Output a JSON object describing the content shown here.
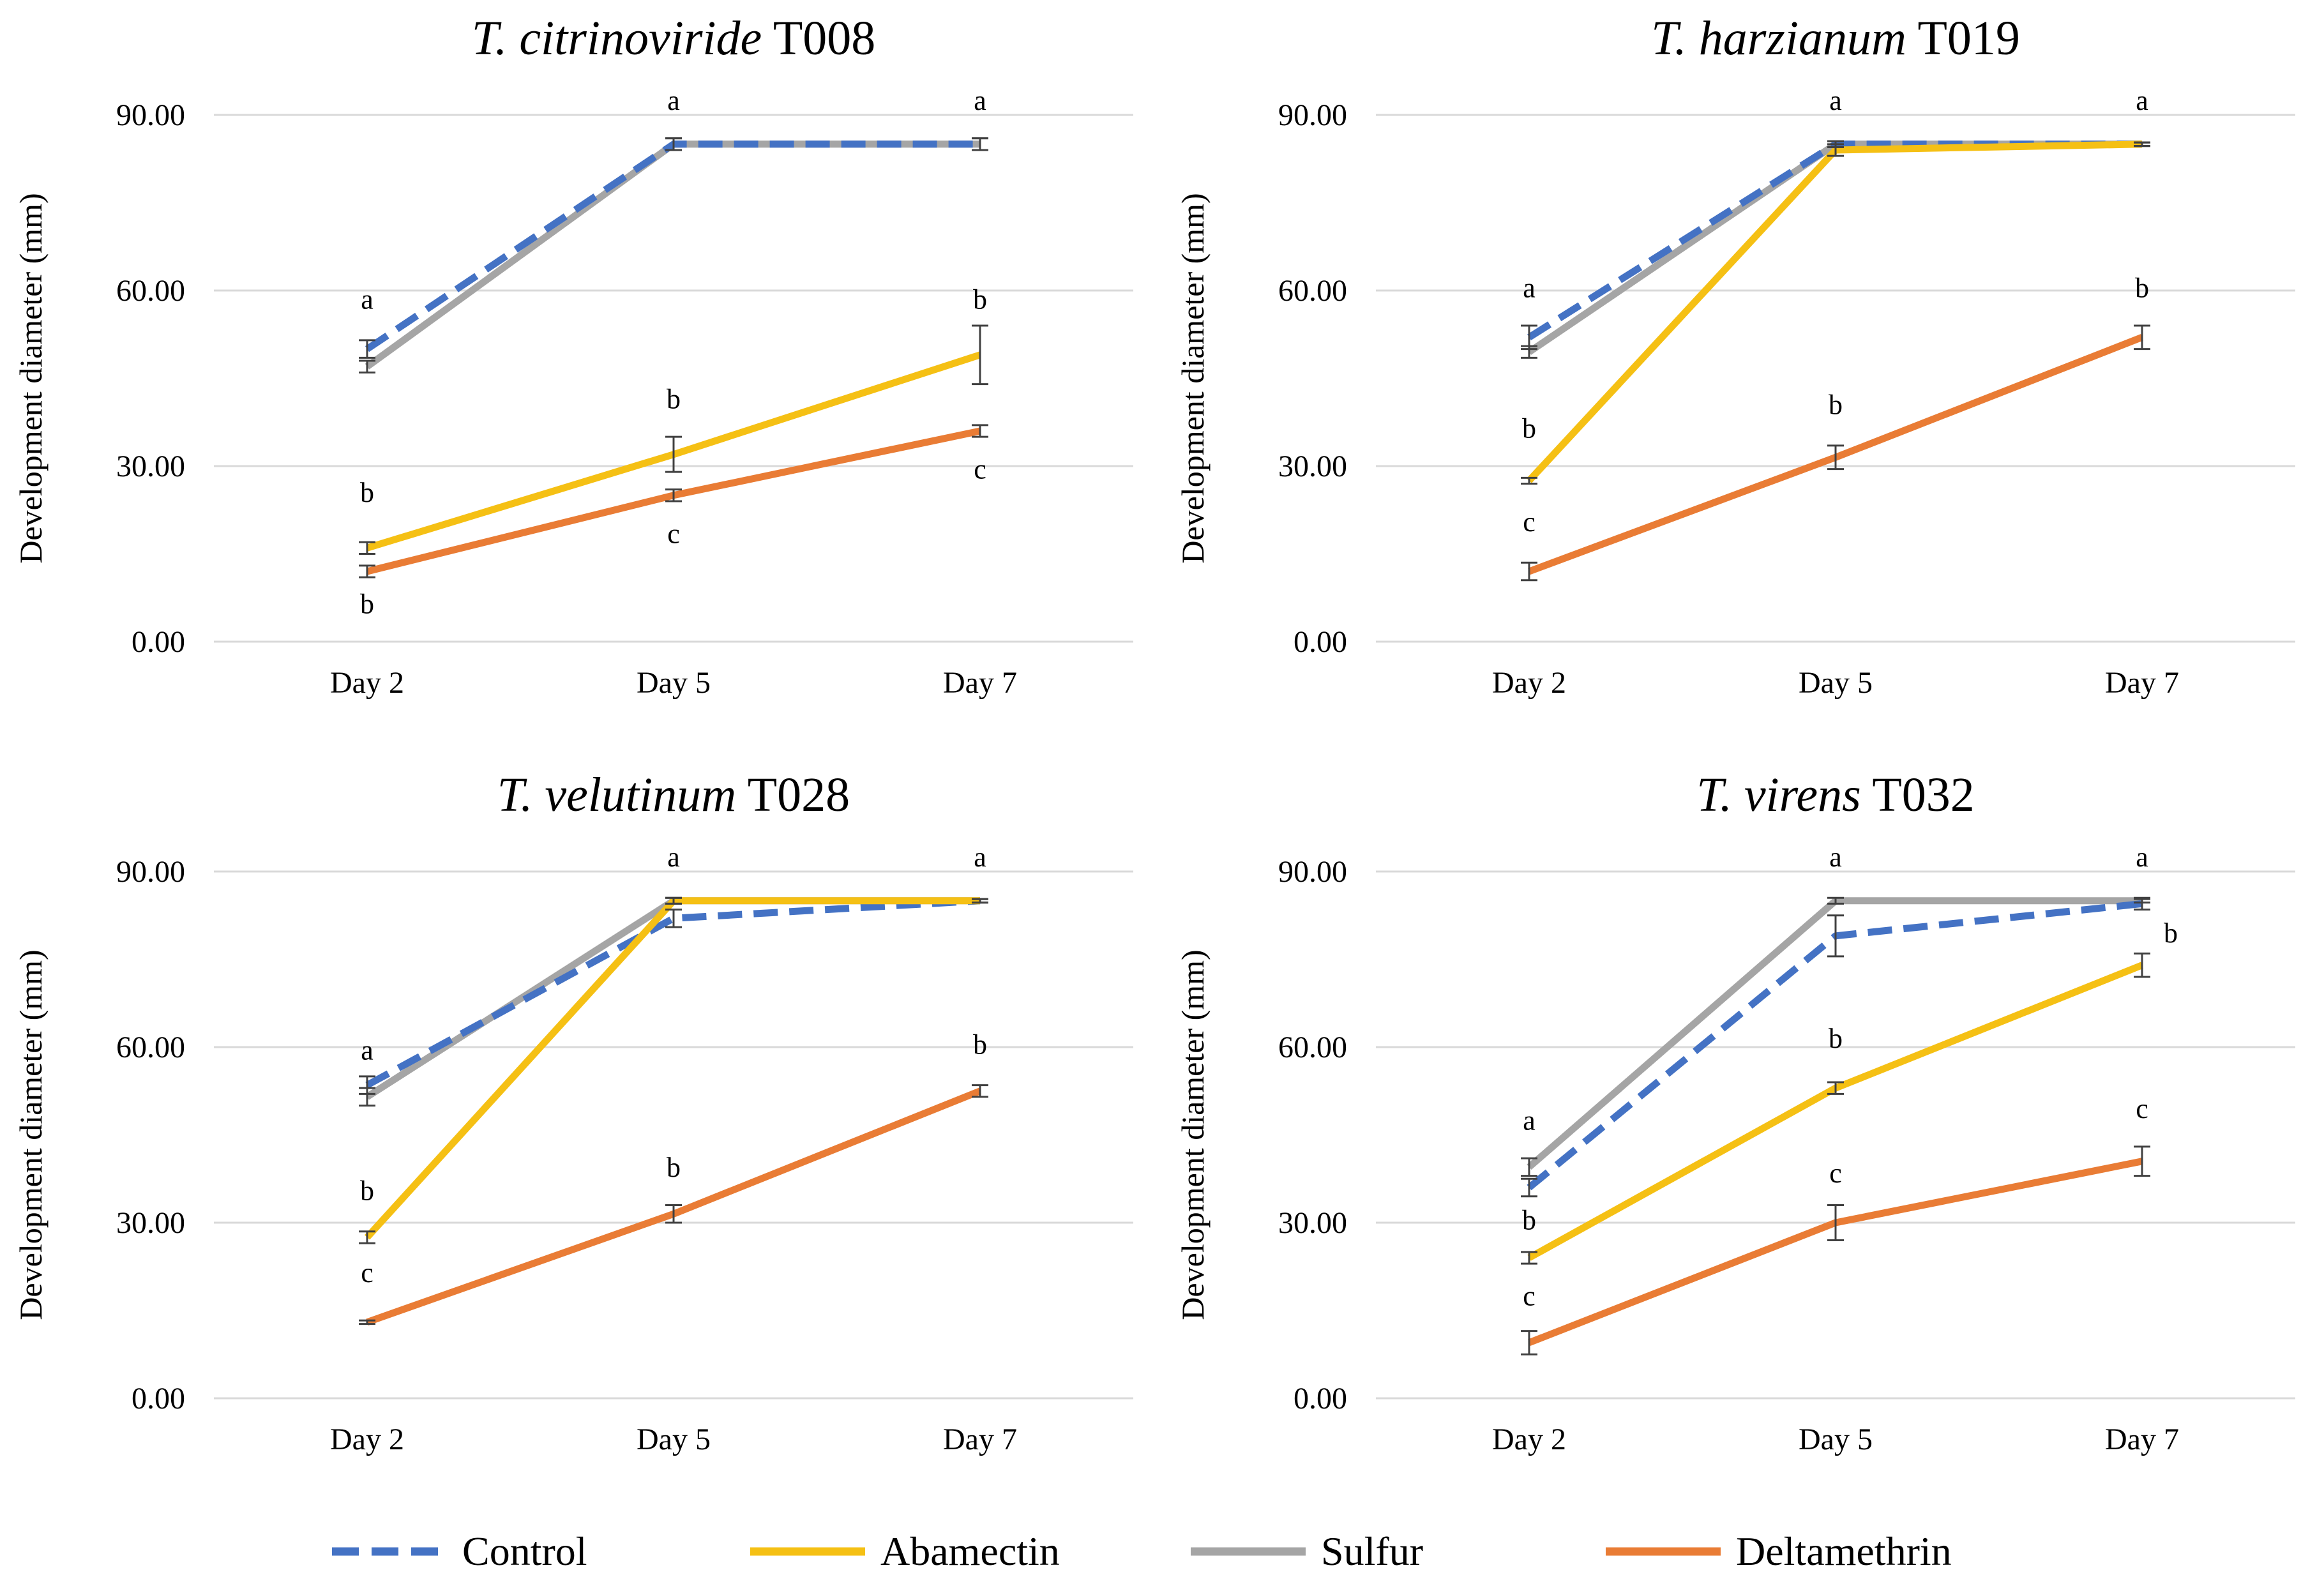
{
  "legend": [
    {
      "name": "Control",
      "color": "#4472C4",
      "dash": true
    },
    {
      "name": "Abamectin",
      "color": "#F5C014",
      "dash": false
    },
    {
      "name": "Sulfur",
      "color": "#A5A5A5",
      "dash": false
    },
    {
      "name": "Deltamethrin",
      "color": "#E97C35",
      "dash": false
    }
  ],
  "chart_data": [
    {
      "type": "line",
      "title_italic": "T. citrinoviride",
      "title_rest": " T008",
      "ylabel": "Development diameter (mm)",
      "categories": [
        "Day 2",
        "Day 5",
        "Day 7"
      ],
      "ylim": [
        0,
        90
      ],
      "yticks": [
        "0.00",
        "30.00",
        "60.00",
        "90.00"
      ],
      "yticks_values": [
        0,
        30,
        60,
        90
      ],
      "series": [
        {
          "name": "Sulfur",
          "values": [
            47,
            85,
            85
          ],
          "err": [
            1,
            1,
            1
          ]
        },
        {
          "name": "Control",
          "values": [
            50,
            85,
            85
          ],
          "err": [
            1.5,
            1,
            1
          ]
        },
        {
          "name": "Abamectin",
          "values": [
            16,
            32,
            49
          ],
          "err": [
            1,
            3,
            5
          ]
        },
        {
          "name": "Deltamethrin",
          "values": [
            12,
            25,
            36
          ],
          "err": [
            1,
            1,
            1
          ]
        }
      ],
      "letters": [
        {
          "text": "a",
          "x": 0,
          "y": 56
        },
        {
          "text": "b",
          "x": 0,
          "y": 23
        },
        {
          "text": "b",
          "x": 0,
          "y": 4
        },
        {
          "text": "a",
          "x": 1,
          "y": 90
        },
        {
          "text": "b",
          "x": 1,
          "y": 39
        },
        {
          "text": "c",
          "x": 1,
          "y": 16
        },
        {
          "text": "a",
          "x": 2,
          "y": 90
        },
        {
          "text": "b",
          "x": 2,
          "y": 56
        },
        {
          "text": "c",
          "x": 2,
          "y": 27
        }
      ]
    },
    {
      "type": "line",
      "title_italic": "T. harzianum",
      "title_rest": " T019",
      "ylabel": "Development diameter (mm)",
      "categories": [
        "Day 2",
        "Day 5",
        "Day 7"
      ],
      "ylim": [
        0,
        90
      ],
      "yticks": [
        "0.00",
        "30.00",
        "60.00",
        "90.00"
      ],
      "yticks_values": [
        0,
        30,
        60,
        90
      ],
      "series": [
        {
          "name": "Sulfur",
          "values": [
            49.5,
            85,
            85
          ],
          "err": [
            1,
            0.5,
            0.3
          ]
        },
        {
          "name": "Control",
          "values": [
            52,
            85,
            85
          ],
          "err": [
            2,
            0.5,
            0.3
          ]
        },
        {
          "name": "Abamectin",
          "values": [
            27.5,
            84,
            85
          ],
          "err": [
            0.5,
            1,
            0.3
          ]
        },
        {
          "name": "Deltamethrin",
          "values": [
            12,
            31.5,
            52
          ],
          "err": [
            1.5,
            2,
            2
          ]
        }
      ],
      "letters": [
        {
          "text": "a",
          "x": 0,
          "y": 58
        },
        {
          "text": "b",
          "x": 0,
          "y": 34
        },
        {
          "text": "c",
          "x": 0,
          "y": 18
        },
        {
          "text": "a",
          "x": 1,
          "y": 90
        },
        {
          "text": "b",
          "x": 1,
          "y": 38
        },
        {
          "text": "a",
          "x": 2,
          "y": 90
        },
        {
          "text": "b",
          "x": 2,
          "y": 58
        }
      ]
    },
    {
      "type": "line",
      "title_italic": "T. velutinum",
      "title_rest": " T028",
      "ylabel": "Development diameter (mm)",
      "categories": [
        "Day 2",
        "Day 5",
        "Day 7"
      ],
      "ylim": [
        0,
        90
      ],
      "yticks": [
        "0.00",
        "30.00",
        "60.00",
        "90.00"
      ],
      "yticks_values": [
        0,
        30,
        60,
        90
      ],
      "series": [
        {
          "name": "Sulfur",
          "values": [
            51.5,
            85,
            85
          ],
          "err": [
            1.5,
            0.5,
            0.3
          ]
        },
        {
          "name": "Control",
          "values": [
            53.5,
            82,
            85
          ],
          "err": [
            1.5,
            1.5,
            0.3
          ]
        },
        {
          "name": "Abamectin",
          "values": [
            27.5,
            85,
            85
          ],
          "err": [
            1,
            0.5,
            0.3
          ]
        },
        {
          "name": "Deltamethrin",
          "values": [
            13,
            31.5,
            52.5
          ],
          "err": [
            0.3,
            1.5,
            1
          ]
        }
      ],
      "letters": [
        {
          "text": "a",
          "x": 0,
          "y": 57
        },
        {
          "text": "b",
          "x": 0,
          "y": 33
        },
        {
          "text": "c",
          "x": 0,
          "y": 19
        },
        {
          "text": "a",
          "x": 1,
          "y": 90
        },
        {
          "text": "b",
          "x": 1,
          "y": 37
        },
        {
          "text": "a",
          "x": 2,
          "y": 90
        },
        {
          "text": "b",
          "x": 2,
          "y": 58
        }
      ]
    },
    {
      "type": "line",
      "title_italic": "T. virens",
      "title_rest": " T032",
      "ylabel": "Development diameter (mm)",
      "categories": [
        "Day 2",
        "Day 5",
        "Day 7"
      ],
      "ylim": [
        0,
        90
      ],
      "yticks": [
        "0.00",
        "30.00",
        "60.00",
        "90.00"
      ],
      "yticks_values": [
        0,
        30,
        60,
        90
      ],
      "series": [
        {
          "name": "Sulfur",
          "values": [
            39.5,
            85,
            85
          ],
          "err": [
            1.5,
            0.5,
            0.3
          ]
        },
        {
          "name": "Control",
          "values": [
            36,
            79,
            84.5
          ],
          "err": [
            1.5,
            3.5,
            1
          ]
        },
        {
          "name": "Abamectin",
          "values": [
            24,
            53,
            74
          ],
          "err": [
            1,
            1,
            2
          ]
        },
        {
          "name": "Deltamethrin",
          "values": [
            9.5,
            30,
            40.5
          ],
          "err": [
            2,
            3,
            2.5
          ]
        }
      ],
      "letters": [
        {
          "text": "a",
          "x": 0,
          "y": 45
        },
        {
          "text": "b",
          "x": 0,
          "y": 28
        },
        {
          "text": "c",
          "x": 0,
          "y": 15
        },
        {
          "text": "a",
          "x": 1,
          "y": 90
        },
        {
          "text": "b",
          "x": 1,
          "y": 59
        },
        {
          "text": "c",
          "x": 1,
          "y": 36
        },
        {
          "text": "a",
          "x": 2,
          "y": 90
        },
        {
          "text": "b",
          "x": 2,
          "y": 77,
          "offset": "right"
        },
        {
          "text": "c",
          "x": 2,
          "y": 47
        }
      ]
    }
  ]
}
